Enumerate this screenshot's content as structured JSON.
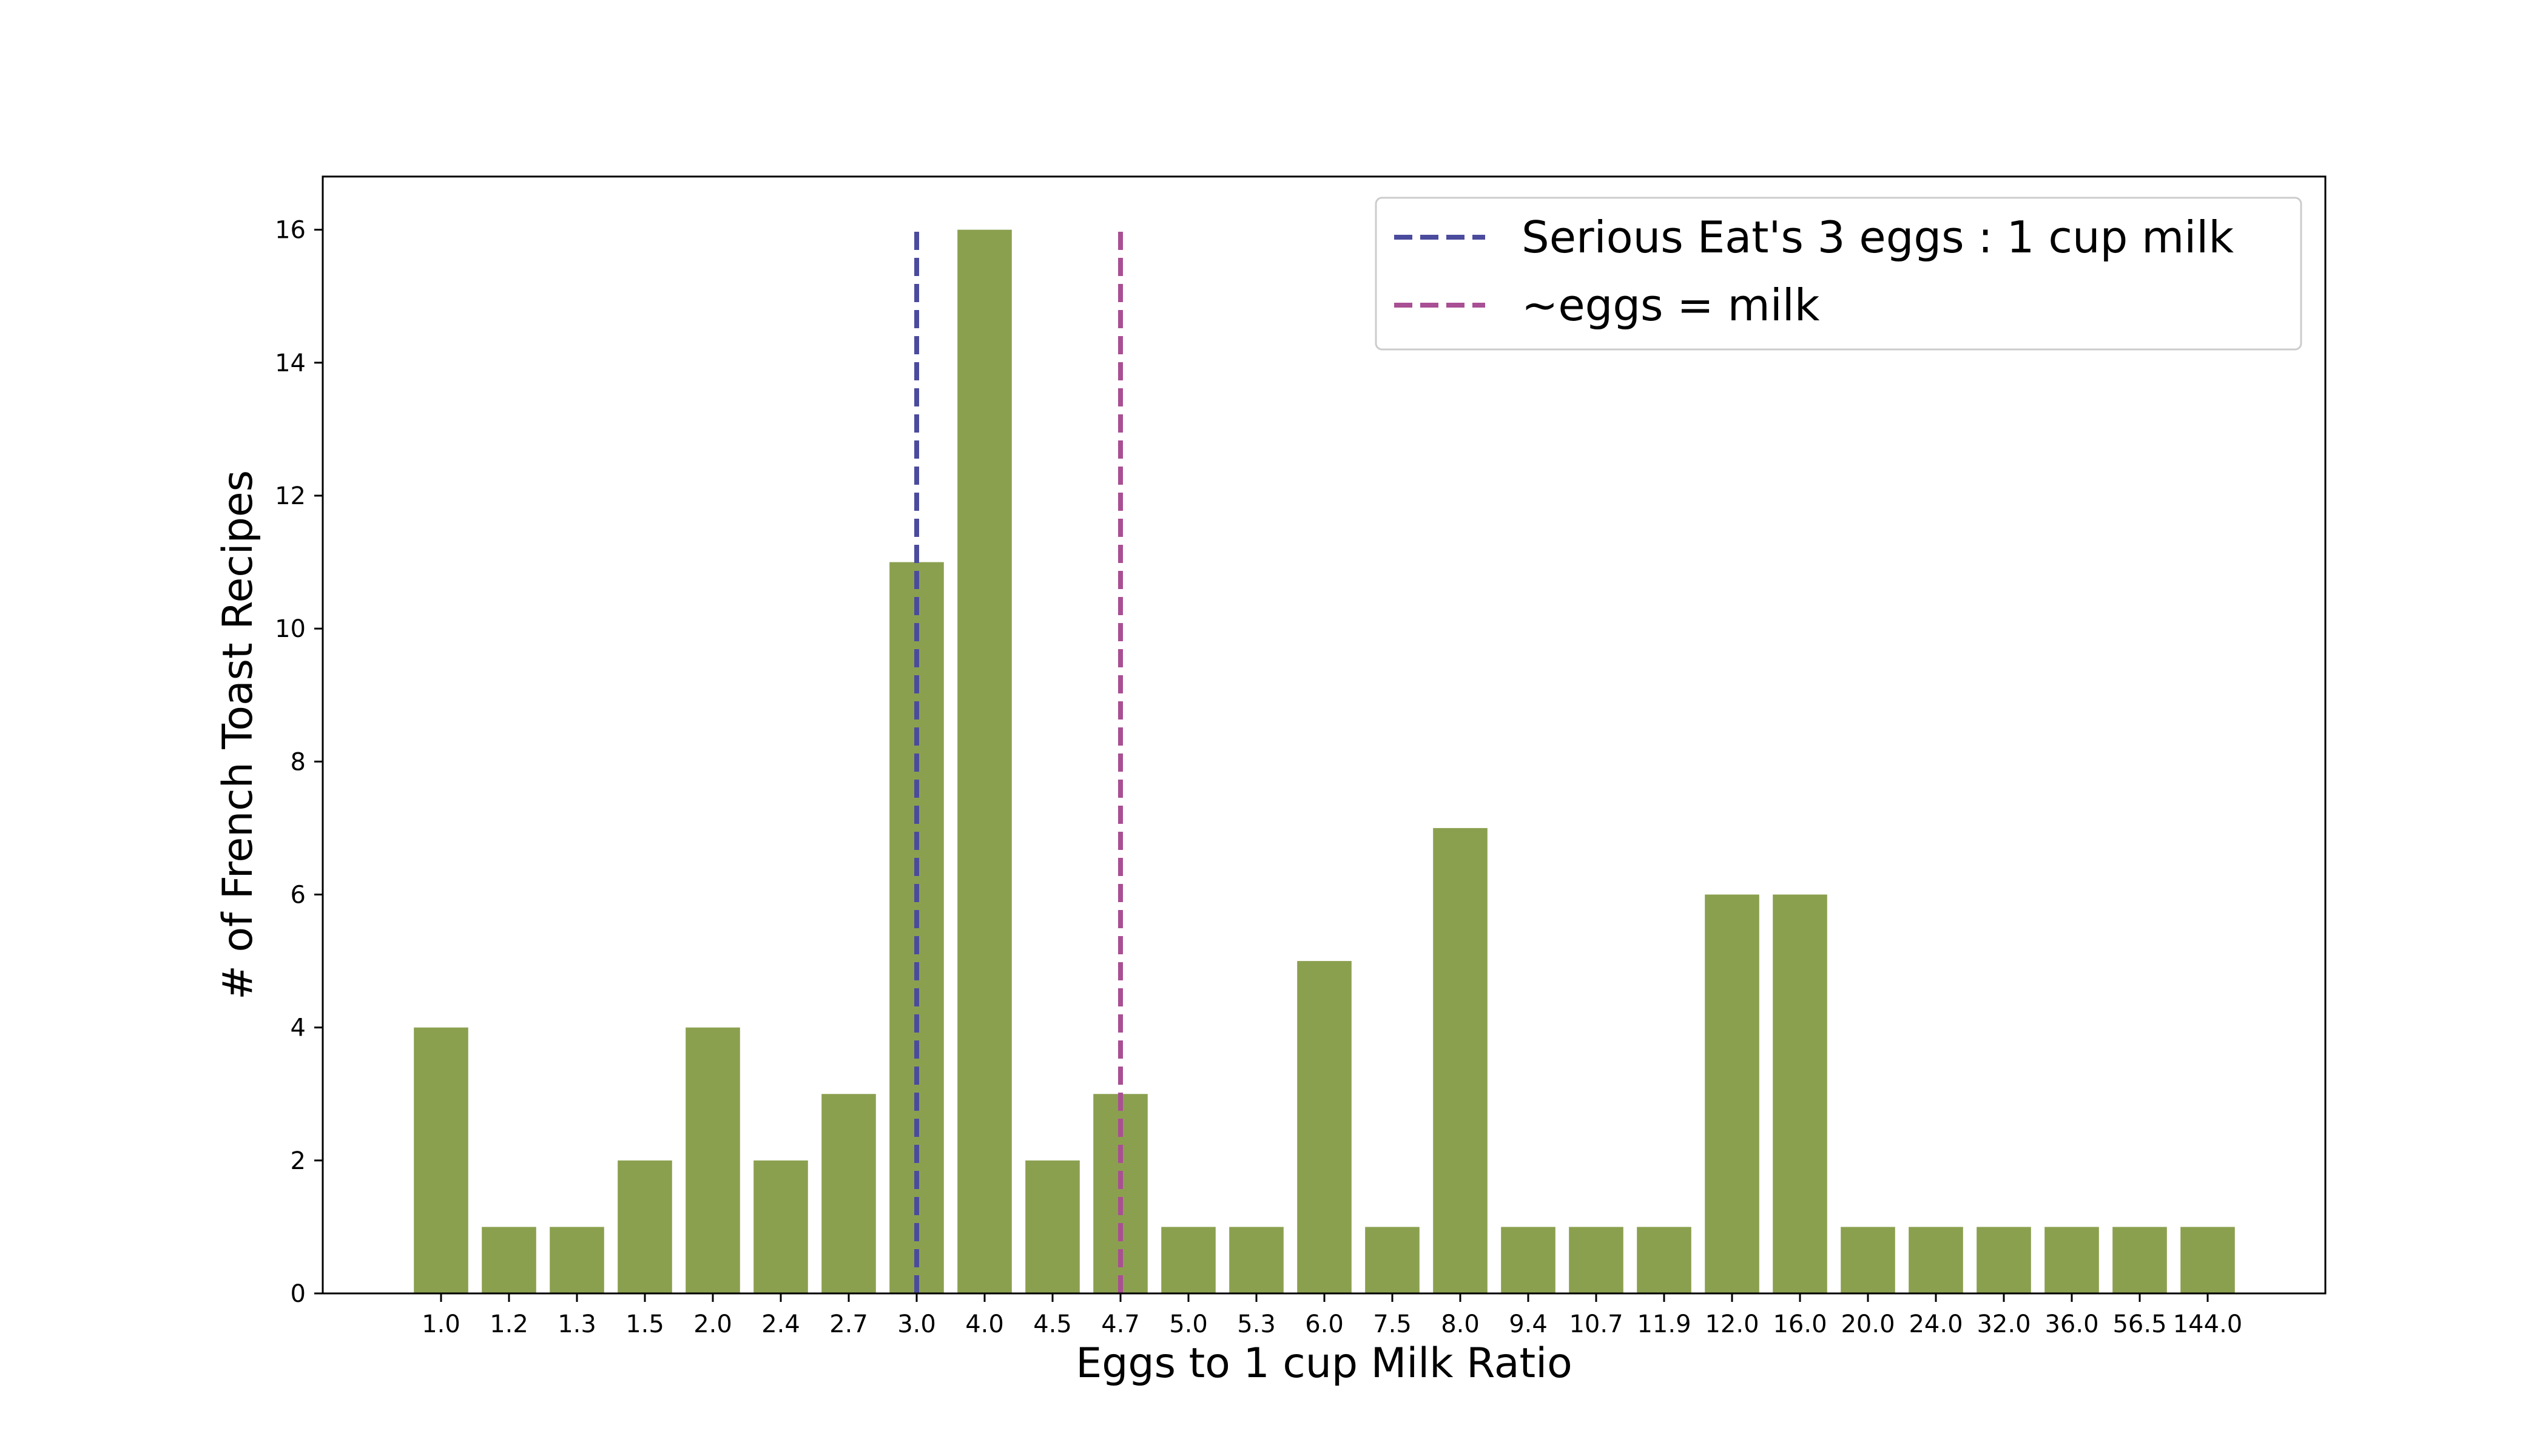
{
  "chart_data": {
    "type": "bar",
    "xlabel": "Eggs to 1 cup Milk Ratio",
    "ylabel": "# of French Toast Recipes",
    "categories": [
      "1.0",
      "1.2",
      "1.3",
      "1.5",
      "2.0",
      "2.4",
      "2.7",
      "3.0",
      "4.0",
      "4.5",
      "4.7",
      "5.0",
      "5.3",
      "6.0",
      "7.5",
      "8.0",
      "9.4",
      "10.7",
      "11.9",
      "12.0",
      "16.0",
      "20.0",
      "24.0",
      "32.0",
      "36.0",
      "56.5",
      "144.0"
    ],
    "values": [
      4,
      1,
      1,
      2,
      4,
      2,
      3,
      11,
      16,
      2,
      3,
      1,
      1,
      5,
      1,
      7,
      1,
      1,
      1,
      6,
      6,
      1,
      1,
      1,
      1,
      1,
      1
    ],
    "ylim": [
      0,
      16.8
    ],
    "yticks": [
      "0",
      "2",
      "4",
      "6",
      "8",
      "10",
      "12",
      "14",
      "16"
    ],
    "bar_color": "#8ba04f",
    "grid": false,
    "reference_lines": [
      {
        "label": "Serious Eat's 3 eggs : 1 cup milk",
        "category": "3.0",
        "ymax": 16,
        "color": "#4b4b9e"
      },
      {
        "label": "~eggs = milk",
        "category": "4.7",
        "ymax": 16,
        "color": "#a94f93"
      }
    ],
    "legend_position": "upper right"
  }
}
